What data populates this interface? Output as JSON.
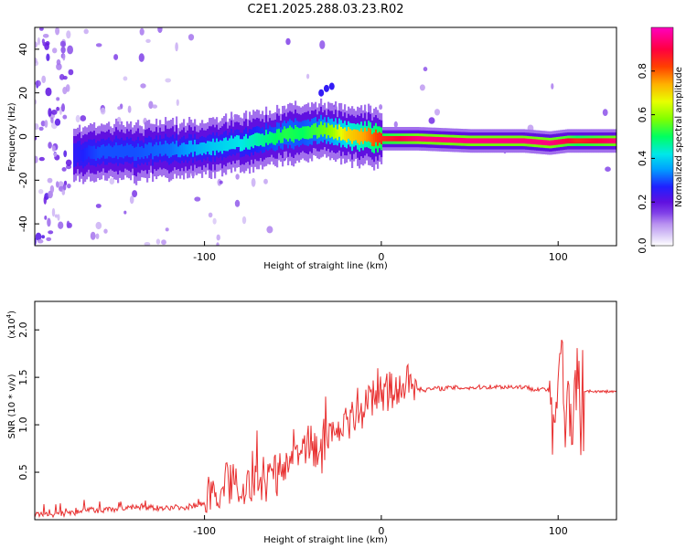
{
  "title": "C2E1.2025.288.03.23.R02",
  "chart_data": [
    {
      "type": "heatmap",
      "name": "spectrogram",
      "xlabel": "Height of straight line (km)",
      "ylabel": "Frequency (Hz)",
      "xlim": [
        -196,
        133
      ],
      "ylim": [
        -50,
        50
      ],
      "xticks": [
        -100,
        0,
        100
      ],
      "yticks": [
        -40,
        -20,
        0,
        20,
        40
      ],
      "colorbar": {
        "label": "Normalized spectral amplitude",
        "range": [
          0,
          1
        ],
        "ticks": [
          "0.0",
          "0.2",
          "0.4",
          "0.6",
          "0.8"
        ],
        "tick_values": [
          0.0,
          0.2,
          0.4,
          0.6,
          0.8
        ],
        "colors": [
          "#ffffff",
          "#d9c8f7",
          "#b890f0",
          "#8040e8",
          "#6010e0",
          "#2020ff",
          "#00a0ff",
          "#00e8e8",
          "#00ff60",
          "#80ff00",
          "#e8ff00",
          "#ffb000",
          "#ff4000",
          "#ff0040",
          "#ff00c0"
        ]
      },
      "ridge": {
        "x": [
          -175,
          -160,
          -140,
          -120,
          -100,
          -80,
          -65,
          -55,
          -45,
          -35,
          -28,
          -20,
          -10,
          0,
          20,
          50,
          80,
          95,
          105,
          110,
          133
        ],
        "freq": [
          -8,
          -7,
          -7,
          -6,
          -5,
          -3,
          -1,
          1,
          2,
          3,
          2,
          1,
          0,
          -1,
          -1,
          -2,
          -2,
          -3,
          -2,
          -2,
          -2
        ],
        "amplitude": [
          0.25,
          0.3,
          0.3,
          0.32,
          0.38,
          0.42,
          0.48,
          0.52,
          0.5,
          0.55,
          0.6,
          0.7,
          0.75,
          0.85,
          0.95,
          0.95,
          0.95,
          0.95,
          0.9,
          0.85,
          0.95
        ]
      }
    },
    {
      "type": "line",
      "name": "snr",
      "xlabel": "Height of straight line (km)",
      "ylabel": "SNR (10 * v/v)",
      "y_multiplier": "(x10",
      "y_multiplier_exp": "4",
      "xlim": [
        -196,
        133
      ],
      "ylim": [
        0,
        2.3
      ],
      "xticks": [
        -100,
        0,
        100
      ],
      "yticks": [
        "0.5",
        "1.0",
        "1.5",
        "2.0"
      ],
      "ytick_values": [
        0.5,
        1.0,
        1.5,
        2.0
      ],
      "color": "#e83030",
      "series": [
        {
          "name": "SNR",
          "x": [
            -196,
            -180,
            -170,
            -165,
            -160,
            -150,
            -140,
            -130,
            -120,
            -110,
            -100,
            -95,
            -90,
            -85,
            -80,
            -75,
            -70,
            -65,
            -60,
            -55,
            -50,
            -45,
            -40,
            -35,
            -30,
            -25,
            -20,
            -15,
            -10,
            -5,
            0,
            5,
            10,
            15,
            20,
            25,
            30,
            40,
            50,
            60,
            70,
            80,
            85,
            90,
            95,
            98,
            100,
            102,
            104,
            106,
            108,
            110,
            112,
            115,
            120,
            125,
            133
          ],
          "y": [
            0.02,
            0.03,
            0.05,
            0.08,
            0.06,
            0.08,
            0.1,
            0.09,
            0.1,
            0.1,
            0.15,
            0.2,
            0.28,
            0.35,
            0.3,
            0.32,
            0.35,
            0.35,
            0.45,
            0.5,
            0.6,
            0.65,
            0.75,
            0.65,
            0.85,
            0.9,
            1.0,
            1.05,
            1.15,
            1.25,
            1.25,
            1.28,
            1.32,
            1.38,
            1.38,
            1.37,
            1.38,
            1.39,
            1.39,
            1.4,
            1.4,
            1.4,
            1.38,
            1.38,
            1.36,
            0.9,
            1.4,
            1.8,
            0.9,
            1.6,
            0.8,
            1.7,
            1.0,
            1.36,
            1.35,
            1.35,
            1.35
          ]
        }
      ]
    }
  ]
}
